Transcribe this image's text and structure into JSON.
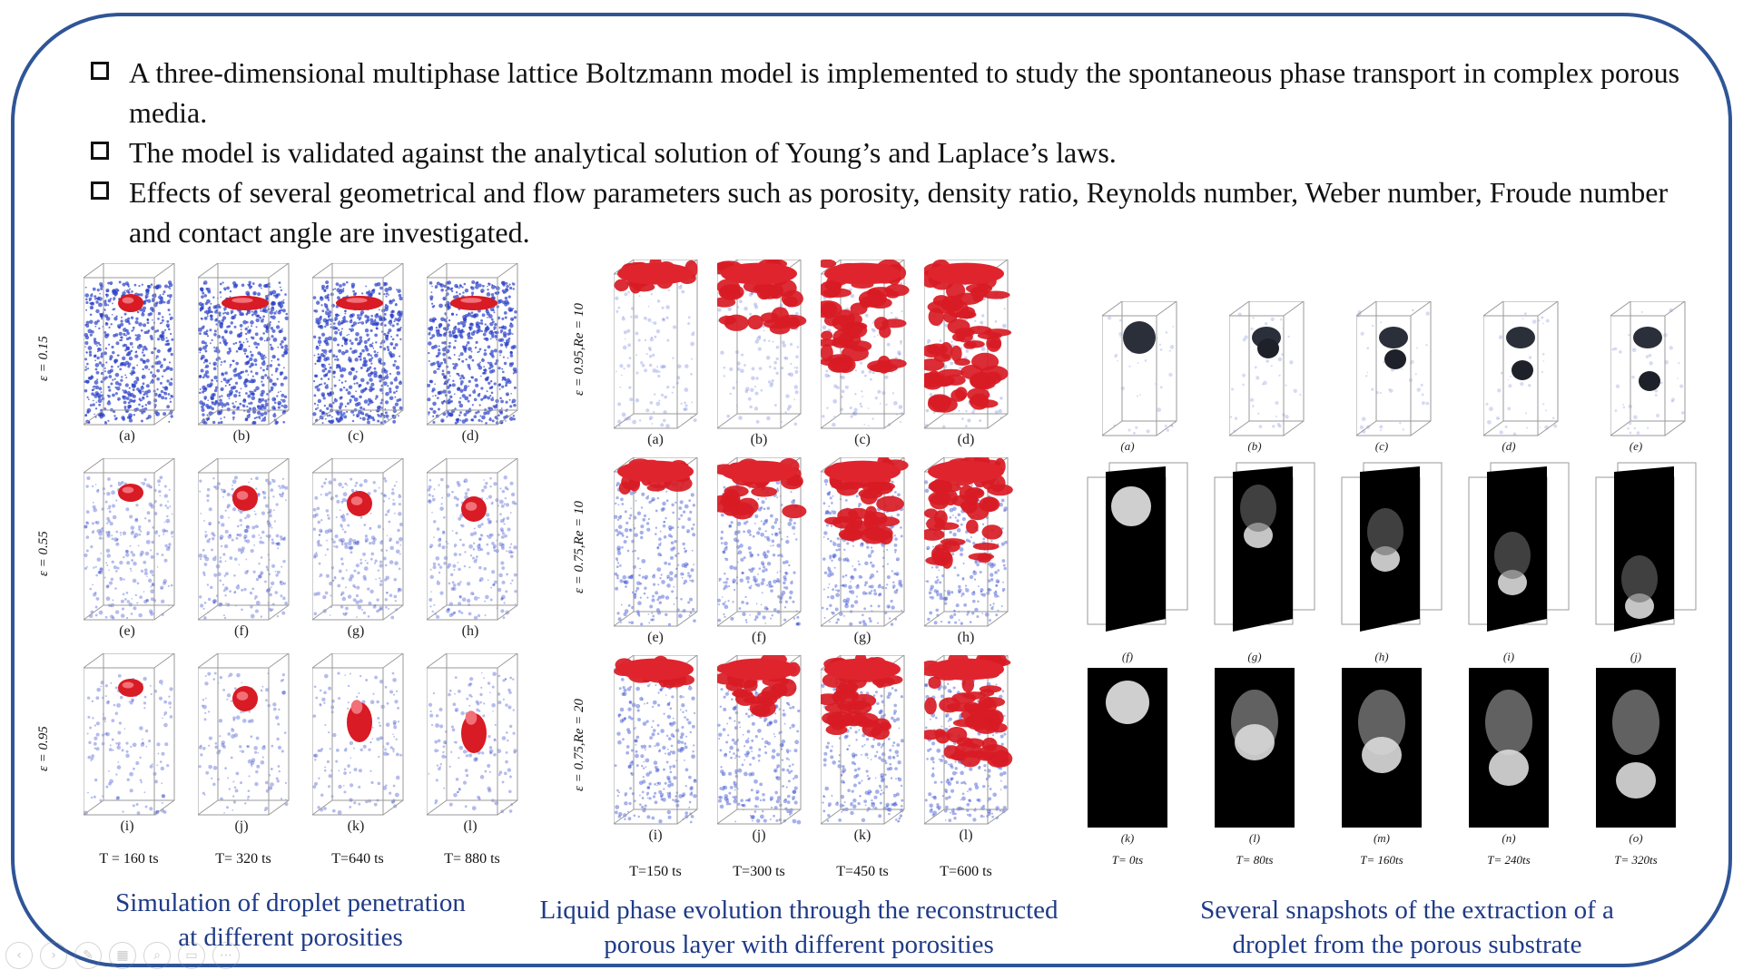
{
  "bullets": [
    "A three-dimensional multiphase lattice Boltzmann model is implemented to study the spontaneous phase transport in complex porous media.",
    "The model is validated against the analytical solution of Young’s and Laplace’s laws.",
    "Effects of several geometrical and flow parameters such as porosity, density ratio, Reynolds number, Weber number, Froude number and contact angle are investigated."
  ],
  "panel1": {
    "row_labels": [
      "ε = 0.15",
      "ε = 0.55",
      "ε = 0.95"
    ],
    "sub_labels": [
      "(a)",
      "(b)",
      "(c)",
      "(d)",
      "(e)",
      "(f)",
      "(g)",
      "(h)",
      "(i)",
      "(j)",
      "(k)",
      "(l)"
    ],
    "times": [
      "T = 160 ts",
      "T= 320 ts",
      "T=640 ts",
      "T= 880 ts"
    ],
    "caption": [
      "Simulation of droplet penetration",
      "at different porosities"
    ]
  },
  "panel2": {
    "row_labels": [
      "ε = 0.95,Re = 10",
      "ε = 0.75,Re = 10",
      "ε = 0.75,Re = 20"
    ],
    "sub_labels": [
      "(a)",
      "(b)",
      "(c)",
      "(d)",
      "(e)",
      "(f)",
      "(g)",
      "(h)",
      "(i)",
      "(j)",
      "(k)",
      "(l)"
    ],
    "times": [
      "T=150 ts",
      "T=300 ts",
      "T=450 ts",
      "T=600 ts"
    ],
    "caption": [
      "Liquid phase evolution through the reconstructed",
      "porous layer with different porosities"
    ]
  },
  "panel3": {
    "sub_labels_row1": [
      "(a)",
      "(b)",
      "(c)",
      "(d)",
      "(e)"
    ],
    "sub_labels_row2": [
      "(f)",
      "(g)",
      "(h)",
      "(i)",
      "(j)"
    ],
    "sub_labels_row3": [
      "(k)",
      "(l)",
      "(m)",
      "(n)",
      "(o)"
    ],
    "times": [
      "T= 0ts",
      "T= 80ts",
      "T= 160ts",
      "T= 240ts",
      "T= 320ts"
    ],
    "caption": [
      "Several snapshots of the extraction of a",
      "droplet from the porous substrate"
    ]
  },
  "colors": {
    "frame": "#2f5597",
    "caption": "#1f3b87",
    "droplet": "#d81b24",
    "porous": "#3a4fd0"
  },
  "nav_icons": [
    "back-icon",
    "forward-icon",
    "pen-icon",
    "slides-icon",
    "zoom-icon",
    "subtitle-icon",
    "more-icon"
  ]
}
